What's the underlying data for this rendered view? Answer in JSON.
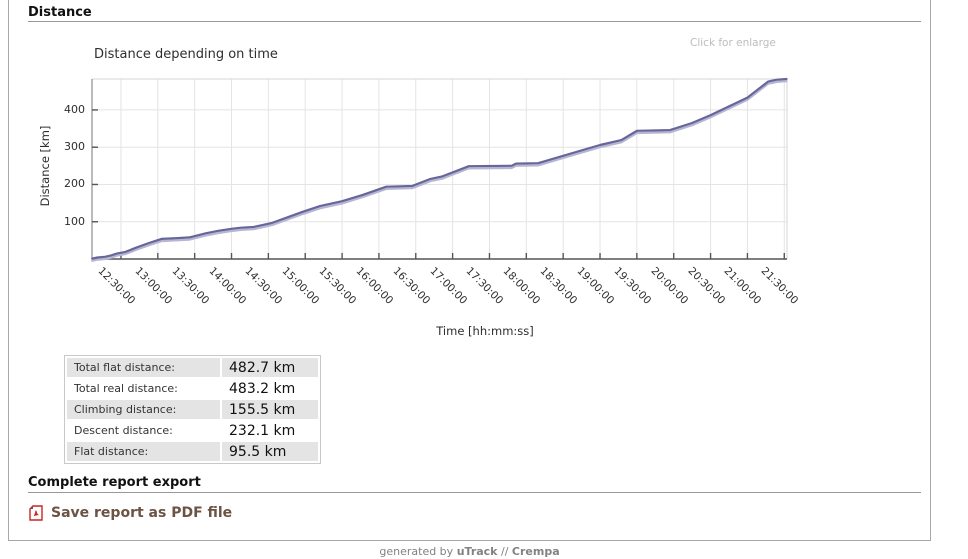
{
  "page": {
    "section_distance_title": "Distance",
    "section_export_title": "Complete report export",
    "export_link_label": "Save report as PDF file",
    "footer": {
      "prefix": "generated by ",
      "app": "uTrack",
      "sep": " // ",
      "author": "Crempa"
    }
  },
  "stats_table": {
    "rows": [
      {
        "label": "Total flat distance:",
        "value": "482.7 km"
      },
      {
        "label": "Total real distance:",
        "value": "483.2 km"
      },
      {
        "label": "Climbing distance:",
        "value": "155.5 km"
      },
      {
        "label": "Descent distance:",
        "value": "232.1 km"
      },
      {
        "label": "Flat distance:",
        "value": "95.5 km"
      }
    ]
  },
  "chart_data": {
    "type": "line",
    "title": "Distance depending on time",
    "xlabel": "Time  [hh:mm:ss]",
    "ylabel": "Distance [km]",
    "enlarge_hint": "Click for enlarge",
    "x_tick_labels": [
      "12:30:00",
      "13:00:00",
      "13:30:00",
      "14:00:00",
      "14:30:00",
      "15:00:00",
      "15:30:00",
      "16:00:00",
      "16:30:00",
      "17:00:00",
      "17:30:00",
      "18:00:00",
      "18:30:00",
      "19:00:00",
      "19:30:00",
      "20:00:00",
      "20:30:00",
      "21:00:00",
      "21:30:00"
    ],
    "x_ticks_hours": [
      12.5,
      13,
      13.5,
      14,
      14.5,
      15,
      15.5,
      16,
      16.5,
      17,
      17.5,
      18,
      18.5,
      19,
      19.5,
      20,
      20.5,
      21,
      21.5
    ],
    "y_ticks": [
      100,
      200,
      300,
      400
    ],
    "xlim_hours": [
      12.107,
      21.537
    ],
    "ylim": [
      0,
      483
    ],
    "grid": true,
    "legend": "none",
    "series": [
      {
        "name": "distance",
        "points": [
          [
            12.11,
            1
          ],
          [
            12.18,
            4
          ],
          [
            12.28,
            6
          ],
          [
            12.36,
            9
          ],
          [
            12.45,
            15
          ],
          [
            12.56,
            19
          ],
          [
            12.7,
            30
          ],
          [
            12.88,
            43
          ],
          [
            13.05,
            54
          ],
          [
            13.27,
            56
          ],
          [
            13.43,
            58
          ],
          [
            13.65,
            69
          ],
          [
            13.83,
            76
          ],
          [
            14.0,
            81
          ],
          [
            14.13,
            84
          ],
          [
            14.3,
            86
          ],
          [
            14.55,
            97
          ],
          [
            14.76,
            112
          ],
          [
            14.97,
            127
          ],
          [
            15.2,
            142
          ],
          [
            15.5,
            155
          ],
          [
            15.78,
            172
          ],
          [
            16.1,
            194
          ],
          [
            16.45,
            196
          ],
          [
            16.7,
            215
          ],
          [
            16.85,
            221
          ],
          [
            17.22,
            249
          ],
          [
            17.8,
            250
          ],
          [
            17.86,
            256
          ],
          [
            18.16,
            257
          ],
          [
            18.5,
            277
          ],
          [
            19.0,
            306
          ],
          [
            19.29,
            319
          ],
          [
            19.5,
            344
          ],
          [
            19.95,
            346
          ],
          [
            20.25,
            365
          ],
          [
            20.5,
            386
          ],
          [
            21.0,
            433
          ],
          [
            21.28,
            476
          ],
          [
            21.4,
            481
          ],
          [
            21.53,
            483
          ]
        ]
      }
    ],
    "colors": {
      "grid": "#e4e4e4",
      "border_light": "#d6d6d6",
      "axis": "#555555",
      "axis_left": "#777777",
      "line": "#66669a",
      "line_shadow": "#b6b6d4"
    }
  }
}
